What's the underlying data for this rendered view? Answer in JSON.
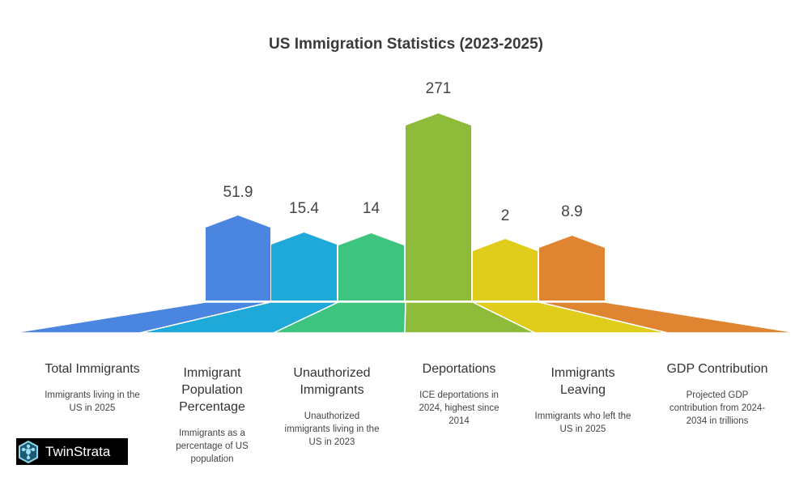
{
  "chart_data": {
    "type": "bar",
    "title": "US Immigration Statistics (2023-2025)",
    "categories": [
      "Total Immigrants",
      "Immigrant Population Percentage",
      "Unauthorized Immigrants",
      "Deportations",
      "Immigrants Leaving",
      "GDP Contribution"
    ],
    "values": [
      51.9,
      15.4,
      14,
      271,
      2,
      8.9
    ],
    "value_labels": [
      "51.9",
      "15.4",
      "14",
      "271",
      "2",
      "8.9"
    ],
    "descriptions": [
      "Immigrants living in the US in 2025",
      "Immigrants as a percentage of US population",
      "Unauthorized immigrants living in the US in 2023",
      "ICE deportations in 2024, highest since 2014",
      "Immigrants who left the US in 2025",
      "Projected GDP contribution from 2024-2034 in trillions"
    ],
    "colors": [
      "#4a86e0",
      "#1fa9d8",
      "#3dc47e",
      "#8fbb3a",
      "#e0cc1a",
      "#df8430"
    ],
    "xlabel": "",
    "ylabel": "",
    "grid": false
  },
  "brand": {
    "name": "TwinStrata"
  }
}
